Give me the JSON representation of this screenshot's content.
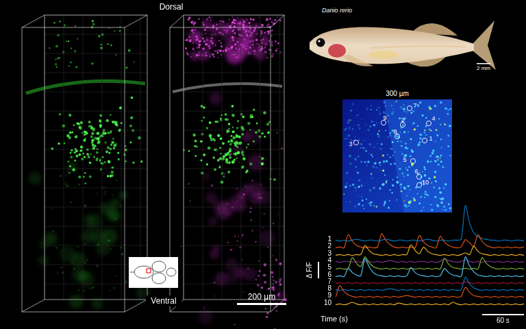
{
  "volume_panel": {
    "top_label": "Dorsal",
    "bottom_label": "Ventral",
    "scale_bar_label": "200 µm"
  },
  "fish_photo": {
    "species": "Danio rerio",
    "scale_bar_label": "2 mm"
  },
  "imaging_map": {
    "title": "300 µm",
    "roi_labels": [
      "1",
      "2",
      "3",
      "4",
      "5",
      "6",
      "7",
      "8",
      "9",
      "10"
    ]
  },
  "chart_data": {
    "type": "line",
    "x_label": "Time (s)",
    "y_label": "Δ F/F",
    "x_scale_bar": {
      "value": 60,
      "label": "60 s"
    },
    "y_scale_bar": 2,
    "tick_labels": false,
    "grid": false,
    "xlim": [
      0,
      270
    ],
    "ylim": [
      0,
      5
    ],
    "x": [
      0,
      6,
      12,
      18,
      24,
      30,
      36,
      42,
      48,
      54,
      60,
      66,
      72,
      78,
      84,
      90,
      96,
      102,
      108,
      114,
      120,
      126,
      132,
      138,
      144,
      150,
      156,
      162,
      168,
      174,
      180,
      186,
      192,
      198,
      204,
      210,
      216,
      222,
      228,
      234,
      240,
      246,
      252,
      258,
      264,
      270
    ],
    "series": [
      {
        "name": "1",
        "color": "#0072BD",
        "values": [
          0.3,
          0.2,
          0.3,
          0.2,
          0.3,
          0.4,
          0.3,
          0.2,
          0.3,
          0.3,
          0.2,
          0.3,
          0.4,
          0.3,
          0.2,
          0.3,
          0.3,
          0.2,
          0.3,
          0.3,
          0.2,
          0.3,
          0.4,
          0.3,
          0.2,
          0.3,
          0.3,
          0.2,
          0.3,
          0.3,
          0.4,
          4.5,
          2.4,
          1.2,
          0.7,
          0.5,
          0.4,
          0.3,
          0.3,
          0.2,
          0.3,
          0.3,
          0.2,
          0.3,
          0.3,
          0.2
        ]
      },
      {
        "name": "2",
        "color": "#D95319",
        "values": [
          0.2,
          0.3,
          0.2,
          1.8,
          1.0,
          0.5,
          0.3,
          0.2,
          0.3,
          0.2,
          0.3,
          1.9,
          1.1,
          0.6,
          0.3,
          0.2,
          0.3,
          0.2,
          0.3,
          0.2,
          1.7,
          0.9,
          0.5,
          0.3,
          0.2,
          1.6,
          0.9,
          0.5,
          0.3,
          0.2,
          0.3,
          1.2,
          0.8,
          0.4,
          1.8,
          1.0,
          0.5,
          0.3,
          0.2,
          0.3,
          0.2,
          0.3,
          0.2,
          0.3,
          0.2,
          0.3
        ]
      },
      {
        "name": "3",
        "color": "#EDB120",
        "values": [
          0.2,
          0.3,
          0.2,
          0.3,
          0.2,
          0.3,
          0.3,
          1.4,
          0.8,
          0.4,
          0.3,
          0.2,
          0.3,
          0.2,
          0.3,
          0.2,
          0.3,
          0.3,
          1.5,
          0.8,
          0.4,
          1.2,
          0.7,
          0.4,
          0.3,
          0.2,
          0.3,
          0.2,
          0.3,
          0.2,
          0.3,
          0.5,
          0.3,
          1.3,
          0.7,
          0.4,
          0.3,
          0.2,
          0.3,
          0.2,
          0.3,
          0.2,
          0.3,
          0.2,
          0.3,
          0.2
        ]
      },
      {
        "name": "4",
        "color": "#7E2F8E",
        "values": [
          0.3,
          0.2,
          0.3,
          0.3,
          0.2,
          0.3,
          0.2,
          0.3,
          0.3,
          0.2,
          0.3,
          0.2,
          0.3,
          0.4,
          0.3,
          0.2,
          0.3,
          0.2,
          0.3,
          0.2,
          0.3,
          0.3,
          0.2,
          0.3,
          0.2,
          0.3,
          0.6,
          0.4,
          0.3,
          0.2,
          0.3,
          0.5,
          0.3,
          0.2,
          0.3,
          0.2,
          0.3,
          0.3,
          0.2,
          0.3,
          0.2,
          0.3,
          0.2,
          0.3,
          0.2,
          0.3
        ]
      },
      {
        "name": "5",
        "color": "#77AC30",
        "values": [
          0.2,
          0.3,
          0.2,
          0.3,
          1.6,
          0.9,
          0.5,
          1.7,
          1.0,
          0.5,
          0.3,
          0.2,
          0.3,
          0.2,
          0.3,
          0.2,
          0.3,
          0.2,
          0.3,
          0.2,
          0.3,
          0.2,
          0.3,
          0.2,
          0.3,
          0.2,
          1.5,
          0.8,
          0.4,
          0.3,
          0.2,
          0.3,
          0.2,
          0.3,
          0.2,
          1.6,
          0.9,
          0.5,
          0.3,
          0.2,
          0.3,
          0.2,
          0.3,
          0.2,
          0.3,
          0.2
        ]
      },
      {
        "name": "6",
        "color": "#4DBEEE",
        "values": [
          0.2,
          0.3,
          0.2,
          1.2,
          0.7,
          0.4,
          0.3,
          2.4,
          1.4,
          0.7,
          0.4,
          0.3,
          0.2,
          0.3,
          0.2,
          0.3,
          0.2,
          0.3,
          1.3,
          0.7,
          0.4,
          0.3,
          0.2,
          0.3,
          0.2,
          0.3,
          1.2,
          0.7,
          0.4,
          0.3,
          0.2,
          2.6,
          1.5,
          0.8,
          0.4,
          0.3,
          0.2,
          0.3,
          0.2,
          0.3,
          0.2,
          0.3,
          0.2,
          0.3,
          0.2,
          0.3
        ]
      },
      {
        "name": "7",
        "color": "#A2142F",
        "values": [
          0.2,
          0.3,
          0.2,
          0.3,
          0.2,
          0.3,
          0.2,
          0.3,
          0.2,
          0.3,
          0.2,
          0.3,
          0.2,
          0.3,
          0.2,
          0.3,
          0.2,
          0.3,
          0.2,
          0.3,
          0.2,
          0.3,
          0.2,
          0.3,
          0.2,
          0.3,
          0.2,
          0.3,
          0.2,
          0.3,
          0.2,
          0.4,
          0.3,
          0.2,
          0.3,
          0.2,
          0.3,
          0.2,
          0.3,
          0.2,
          0.3,
          0.2,
          0.3,
          0.2,
          0.3,
          0.2
        ]
      },
      {
        "name": "8",
        "color": "#0072BD",
        "values": [
          0.3,
          0.2,
          0.3,
          0.2,
          0.3,
          0.2,
          0.3,
          0.2,
          0.3,
          0.2,
          0.3,
          0.2,
          0.3,
          0.4,
          0.3,
          0.2,
          0.3,
          0.2,
          0.3,
          0.2,
          0.3,
          0.2,
          0.3,
          0.2,
          0.3,
          0.2,
          0.3,
          0.2,
          0.3,
          0.2,
          0.3,
          1.8,
          1.0,
          0.5,
          0.3,
          0.2,
          0.3,
          0.2,
          0.3,
          0.2,
          0.3,
          0.2,
          0.3,
          0.2,
          0.3,
          0.2
        ]
      },
      {
        "name": "9",
        "color": "#D95319",
        "values": [
          0.2,
          1.6,
          0.9,
          0.5,
          0.3,
          0.2,
          0.3,
          0.2,
          0.3,
          0.2,
          0.3,
          0.2,
          0.3,
          0.2,
          0.3,
          0.2,
          0.3,
          0.4,
          0.3,
          0.2,
          0.3,
          0.2,
          0.3,
          0.2,
          0.3,
          0.2,
          0.3,
          0.2,
          0.3,
          0.2,
          0.3,
          1.4,
          0.8,
          0.4,
          0.3,
          0.2,
          0.3,
          0.2,
          0.3,
          0.2,
          0.3,
          0.2,
          0.3,
          0.2,
          0.3,
          0.2
        ]
      },
      {
        "name": "10",
        "color": "#EDB120",
        "values": [
          0.2,
          0.3,
          0.2,
          0.3,
          0.5,
          0.3,
          0.2,
          0.3,
          0.2,
          0.3,
          0.2,
          0.3,
          0.2,
          0.3,
          0.2,
          0.4,
          0.3,
          0.2,
          0.3,
          0.2,
          0.3,
          0.2,
          0.3,
          0.2,
          0.3,
          0.2,
          0.3,
          0.2,
          0.5,
          0.3,
          0.2,
          0.3,
          0.2,
          0.3,
          0.2,
          0.3,
          0.2,
          0.3,
          0.2,
          0.3,
          0.2,
          0.3,
          0.2,
          0.3,
          0.2,
          0.3
        ]
      }
    ]
  }
}
